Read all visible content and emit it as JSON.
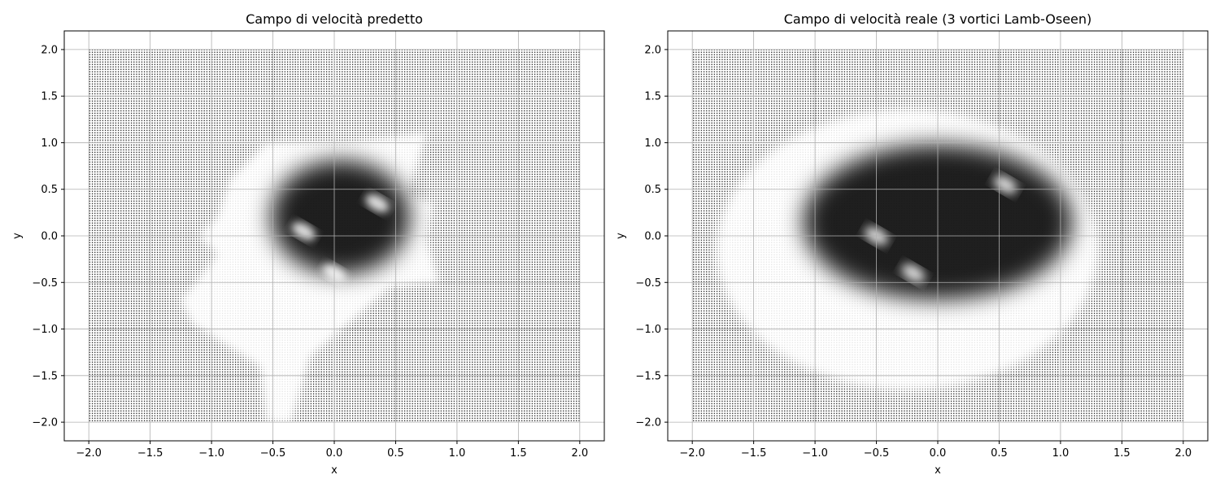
{
  "chart_data": [
    {
      "type": "quiver",
      "title": "Campo di velocità predetto",
      "xlabel": "x",
      "ylabel": "y",
      "xlim": [
        -2.2,
        2.2
      ],
      "ylim": [
        -2.2,
        2.2
      ],
      "xticks": [
        -2.0,
        -1.5,
        -1.0,
        -0.5,
        0.0,
        0.5,
        1.0,
        1.5,
        2.0
      ],
      "yticks": [
        -2.0,
        -1.5,
        -1.0,
        -0.5,
        0.0,
        0.5,
        1.0,
        1.5,
        2.0
      ],
      "xtick_labels": [
        "−2.0",
        "−1.5",
        "−1.0",
        "−0.5",
        "0.0",
        "0.5",
        "1.0",
        "1.5",
        "2.0"
      ],
      "ytick_labels": [
        "−2.0",
        "−1.5",
        "−1.0",
        "−0.5",
        "0.0",
        "0.5",
        "1.0",
        "1.5",
        "2.0"
      ],
      "grid": true,
      "field_domain": {
        "x": [
          -2.0,
          2.0
        ],
        "y": [
          -2.0,
          2.0
        ]
      },
      "vortex_centers": [
        [
          -0.25,
          0.05
        ],
        [
          0.35,
          0.35
        ],
        [
          0.0,
          -0.4
        ]
      ],
      "dense_region_center": [
        0.05,
        0.2
      ],
      "fade_boundary": [
        [
          -0.55,
          1.0
        ],
        [
          0.1,
          1.0
        ],
        [
          0.75,
          1.1
        ],
        [
          0.6,
          0.45
        ],
        [
          0.8,
          0.35
        ],
        [
          0.75,
          -0.05
        ],
        [
          0.85,
          -0.5
        ],
        [
          0.45,
          -0.55
        ],
        [
          0.15,
          -0.9
        ],
        [
          -0.2,
          -1.3
        ],
        [
          -0.35,
          -2.0
        ],
        [
          -0.55,
          -2.0
        ],
        [
          -0.6,
          -1.4
        ],
        [
          -1.15,
          -0.95
        ],
        [
          -1.25,
          -0.7
        ],
        [
          -0.95,
          -0.2
        ],
        [
          -1.1,
          0.0
        ],
        [
          -0.95,
          0.2
        ],
        [
          -0.85,
          0.6
        ]
      ]
    },
    {
      "type": "quiver",
      "title": "Campo di velocità reale (3 vortici Lamb-Oseen)",
      "xlabel": "x",
      "ylabel": "y",
      "xlim": [
        -2.2,
        2.2
      ],
      "ylim": [
        -2.2,
        2.2
      ],
      "xticks": [
        -2.0,
        -1.5,
        -1.0,
        -0.5,
        0.0,
        0.5,
        1.0,
        1.5,
        2.0
      ],
      "yticks": [
        -2.0,
        -1.5,
        -1.0,
        -0.5,
        0.0,
        0.5,
        1.0,
        1.5,
        2.0
      ],
      "xtick_labels": [
        "−2.0",
        "−1.5",
        "−1.0",
        "−0.5",
        "0.0",
        "0.5",
        "1.0",
        "1.5",
        "2.0"
      ],
      "ytick_labels": [
        "−2.0",
        "−1.5",
        "−1.0",
        "−0.5",
        "0.0",
        "0.5",
        "1.0",
        "1.5",
        "2.0"
      ],
      "grid": true,
      "field_domain": {
        "x": [
          -2.0,
          2.0
        ],
        "y": [
          -2.0,
          2.0
        ]
      },
      "vortex_centers": [
        [
          -0.5,
          0.0
        ],
        [
          0.55,
          0.55
        ],
        [
          -0.2,
          -0.4
        ]
      ],
      "dense_region_center": [
        0.0,
        0.15
      ],
      "fade_ellipse": {
        "center": [
          -0.25,
          -0.15
        ],
        "radii": [
          1.55,
          1.5
        ]
      }
    }
  ]
}
